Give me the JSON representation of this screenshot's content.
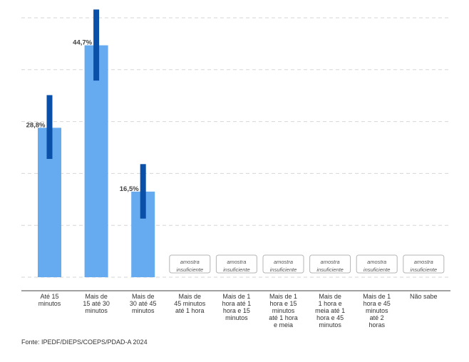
{
  "chart_data": {
    "type": "bar",
    "categories": [
      [
        "Até 15",
        "minutos"
      ],
      [
        "Mais de",
        "15 até 30",
        "minutos"
      ],
      [
        "Mais de",
        "30 até 45",
        "minutos"
      ],
      [
        "Mais de",
        "45 minutos",
        "até 1 hora"
      ],
      [
        "Mais de 1",
        "hora até 1",
        "hora e 15",
        "minutos"
      ],
      [
        "Mais de 1",
        "hora e 15",
        "minutos",
        "até 1 hora",
        "e meia"
      ],
      [
        "Mais de",
        "1 hora e",
        "meia até 1",
        "hora e 45",
        "minutos"
      ],
      [
        "Mais de 1",
        "hora e 45",
        "minutos",
        "até 2",
        "horas"
      ],
      [
        "Não sabe"
      ]
    ],
    "values": [
      28.8,
      44.7,
      16.5,
      null,
      null,
      null,
      null,
      null,
      null
    ],
    "value_labels": [
      "28,8%",
      "44,7%",
      "16,5%",
      "",
      "",
      "",
      "",
      "",
      ""
    ],
    "error_bars": [
      [
        22.8,
        35.1
      ],
      [
        37.9,
        51.6
      ],
      [
        11.3,
        21.8
      ],
      null,
      null,
      null,
      null,
      null,
      null
    ],
    "insufficient_label": [
      "amostra",
      "insuficiente"
    ],
    "ylim": [
      0,
      50
    ],
    "gridlines": [
      0,
      10,
      20,
      30,
      40,
      50
    ],
    "grid": true,
    "colors": {
      "bar": "#66aaf0",
      "error_bar": "#0a4fa8",
      "grid": "#d6d6d6",
      "axis": "#444444",
      "text": "#333333",
      "box_border": "#b5b5b5"
    }
  },
  "source": "Fonte: IPEDF/DIEPS/COEPS/PDAD-A 2024"
}
